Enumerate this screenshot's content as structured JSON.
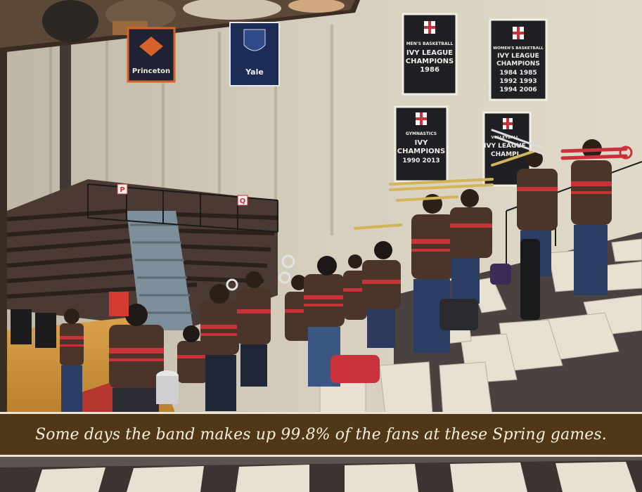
{
  "caption": "Some days the band makes up 99.8% of the fans at these Spring games.",
  "banners": {
    "princeton": "Princeton",
    "yale": "Yale",
    "mens_basketball": {
      "line1": "MEN'S BASKETBALL",
      "line2": "IVY LEAGUE",
      "line3": "CHAMPIONS",
      "line4": "1986"
    },
    "womens_basketball": {
      "line1": "WOMEN'S BASKETBALL",
      "line2": "IVY LEAGUE",
      "line3": "CHAMPIONS",
      "line4": "1984  1985",
      "line5": "1992  1993",
      "line6": "1994  2006"
    },
    "gymnastics": {
      "line1": "GYMNASTICS",
      "line2": "IVY",
      "line3": "CHAMPIONS",
      "line4": "1990  2013"
    },
    "volleyball": {
      "line1": "VOLLEYBALL",
      "line2": "IVY LEAGUE",
      "line3": "CHAMPI"
    }
  },
  "section_signs": {
    "p": "P",
    "q": "Q"
  },
  "colors": {
    "caption_bg": "#4f3717",
    "caption_text": "#f4eedd",
    "wall": "#d9d2bf",
    "banner_bg": "#1f1f24",
    "jersey_brown": "#4a3528",
    "jersey_stripe": "#c9323a"
  }
}
